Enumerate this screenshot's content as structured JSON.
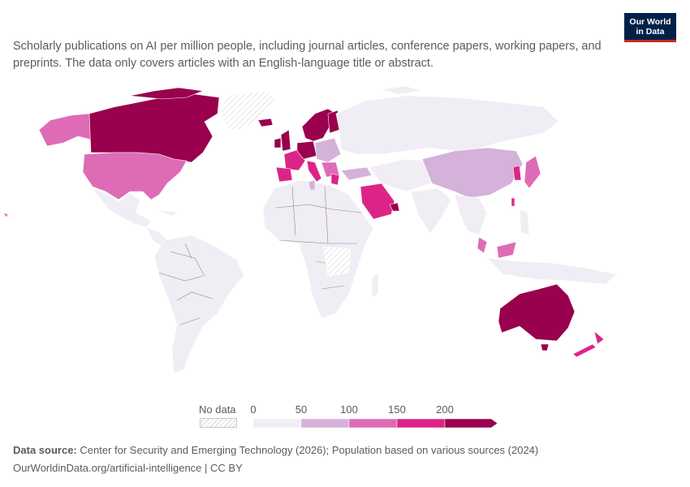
{
  "subtitle": "Scholarly publications on AI per million people, including journal articles, conference papers, working papers, and preprints. The data only covers articles with an English-language title or abstract.",
  "logo": {
    "line1": "Our World",
    "line2": "in Data"
  },
  "legend": {
    "no_data_label": "No data",
    "ticks": [
      "0",
      "50",
      "100",
      "150",
      "200"
    ],
    "bins": [
      {
        "from": 0,
        "to": 50,
        "color": "#f1edf4"
      },
      {
        "from": 50,
        "to": 100,
        "color": "#d5b2d9"
      },
      {
        "from": 100,
        "to": 150,
        "color": "#de6bb6"
      },
      {
        "from": 150,
        "to": 200,
        "color": "#dc2488"
      },
      {
        "from": 200,
        "to": null,
        "color": "#99004d"
      }
    ]
  },
  "source": {
    "label": "Data source:",
    "text": "Center for Security and Emerging Technology (2026); Population based on various sources (2024)"
  },
  "footer_url": "OurWorldinData.org/artificial-intelligence | CC BY"
}
